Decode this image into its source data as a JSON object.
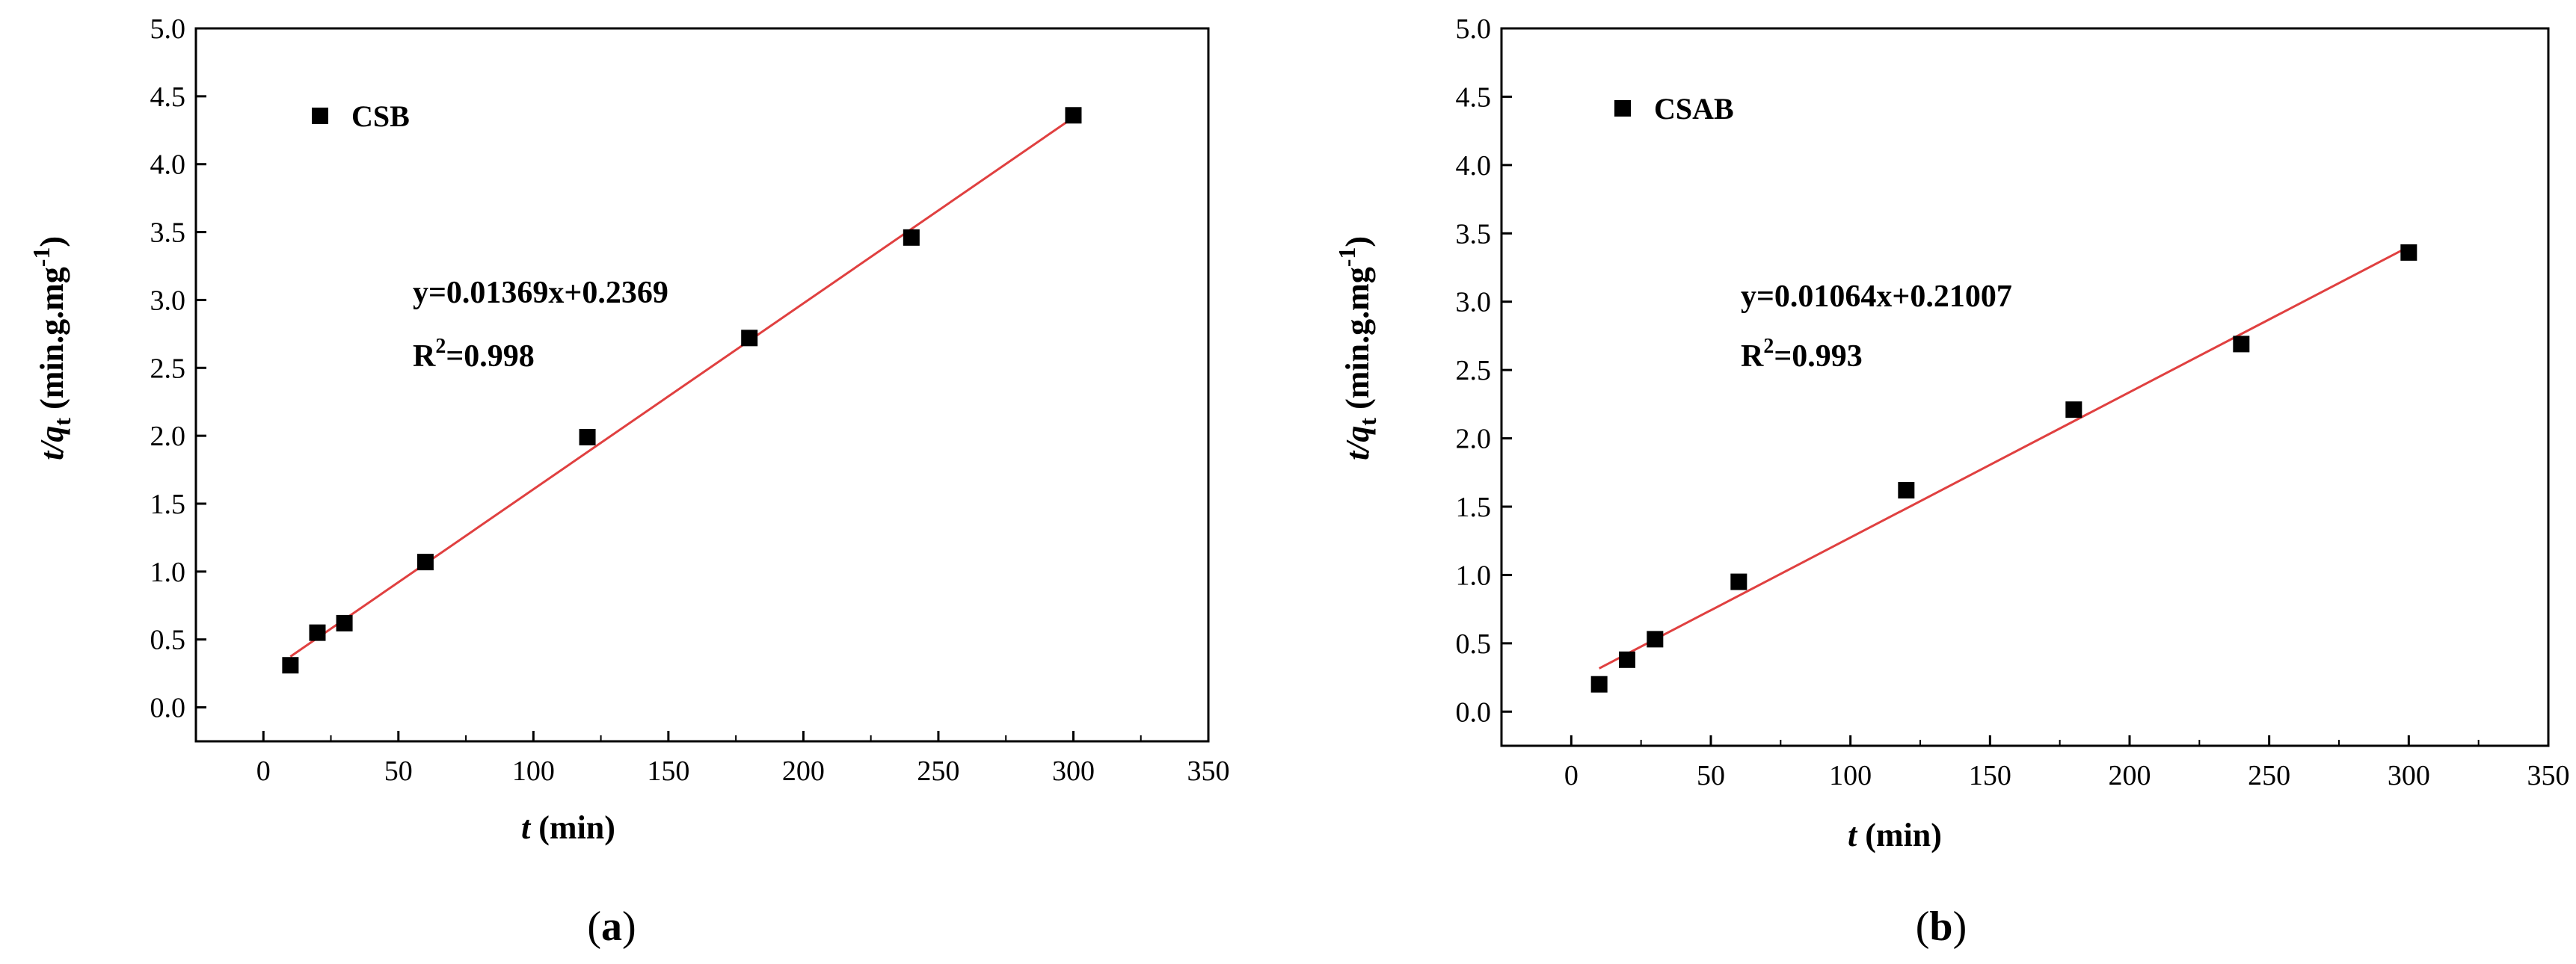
{
  "chart_data": [
    {
      "type": "scatter",
      "panel_label": "(a)",
      "panel_letter": "a",
      "xlabel_italic": "t",
      "xlabel_rest": " (min)",
      "ylabel_t": "t",
      "ylabel_slash": "/",
      "ylabel_q": "q",
      "ylabel_sub": "t",
      "ylabel_unit": " (min.g.mg",
      "ylabel_sup": "-1",
      "ylabel_close": ")",
      "xlim": [
        -25,
        350
      ],
      "ylim": [
        -0.25,
        5.0
      ],
      "xticks": [
        0,
        50,
        100,
        150,
        200,
        250,
        300,
        350
      ],
      "xtick_labels": [
        "0",
        "50",
        "100",
        "150",
        "200",
        "250",
        "300",
        "350"
      ],
      "yticks": [
        0.0,
        0.5,
        1.0,
        1.5,
        2.0,
        2.5,
        3.0,
        3.5,
        4.0,
        4.5,
        5.0
      ],
      "ytick_labels": [
        "0.0",
        "0.5",
        "1.0",
        "1.5",
        "2.0",
        "2.5",
        "3.0",
        "3.5",
        "4.0",
        "4.5",
        "5.0"
      ],
      "grid": false,
      "legend_position": "top-left",
      "series": [
        {
          "name": "CSB",
          "marker": "square",
          "color": "#000000",
          "x": [
            10,
            20,
            30,
            60,
            120,
            180,
            240,
            300
          ],
          "y": [
            0.31,
            0.55,
            0.62,
            1.07,
            1.99,
            2.72,
            3.46,
            4.36
          ]
        }
      ],
      "fit": {
        "slope": 0.01369,
        "intercept": 0.2369,
        "x_range": [
          10,
          300
        ],
        "color": "#e04040"
      },
      "equation": "y=0.01369x+0.2369",
      "r2_prefix": "R",
      "r2_sup": "2",
      "r2_value": "=0.998"
    },
    {
      "type": "scatter",
      "panel_label": "(b)",
      "panel_letter": "b",
      "xlabel_italic": "t",
      "xlabel_rest": " (min)",
      "ylabel_t": "t",
      "ylabel_slash": "/",
      "ylabel_q": "q",
      "ylabel_sub": "t",
      "ylabel_unit": " (min.g.mg",
      "ylabel_sup": "-1",
      "ylabel_close": ")",
      "xlim": [
        -25,
        350
      ],
      "ylim": [
        -0.25,
        5.0
      ],
      "xticks": [
        0,
        50,
        100,
        150,
        200,
        250,
        300,
        350
      ],
      "xtick_labels": [
        "0",
        "50",
        "100",
        "150",
        "200",
        "250",
        "300",
        "350"
      ],
      "yticks": [
        0.0,
        0.5,
        1.0,
        1.5,
        2.0,
        2.5,
        3.0,
        3.5,
        4.0,
        4.5,
        5.0
      ],
      "ytick_labels": [
        "0.0",
        "0.5",
        "1.0",
        "1.5",
        "2.0",
        "2.5",
        "3.0",
        "3.5",
        "4.0",
        "4.5",
        "5.0"
      ],
      "grid": false,
      "legend_position": "top-left",
      "series": [
        {
          "name": "CSAB",
          "marker": "square",
          "color": "#000000",
          "x": [
            10,
            20,
            30,
            60,
            120,
            180,
            240,
            300
          ],
          "y": [
            0.2,
            0.38,
            0.53,
            0.95,
            1.62,
            2.21,
            2.69,
            3.36
          ]
        }
      ],
      "fit": {
        "slope": 0.01064,
        "intercept": 0.21007,
        "x_range": [
          10,
          300
        ],
        "color": "#e04040"
      },
      "equation": "y=0.01064x+0.21007",
      "r2_prefix": "R",
      "r2_sup": "2",
      "r2_value": "=0.993"
    }
  ]
}
